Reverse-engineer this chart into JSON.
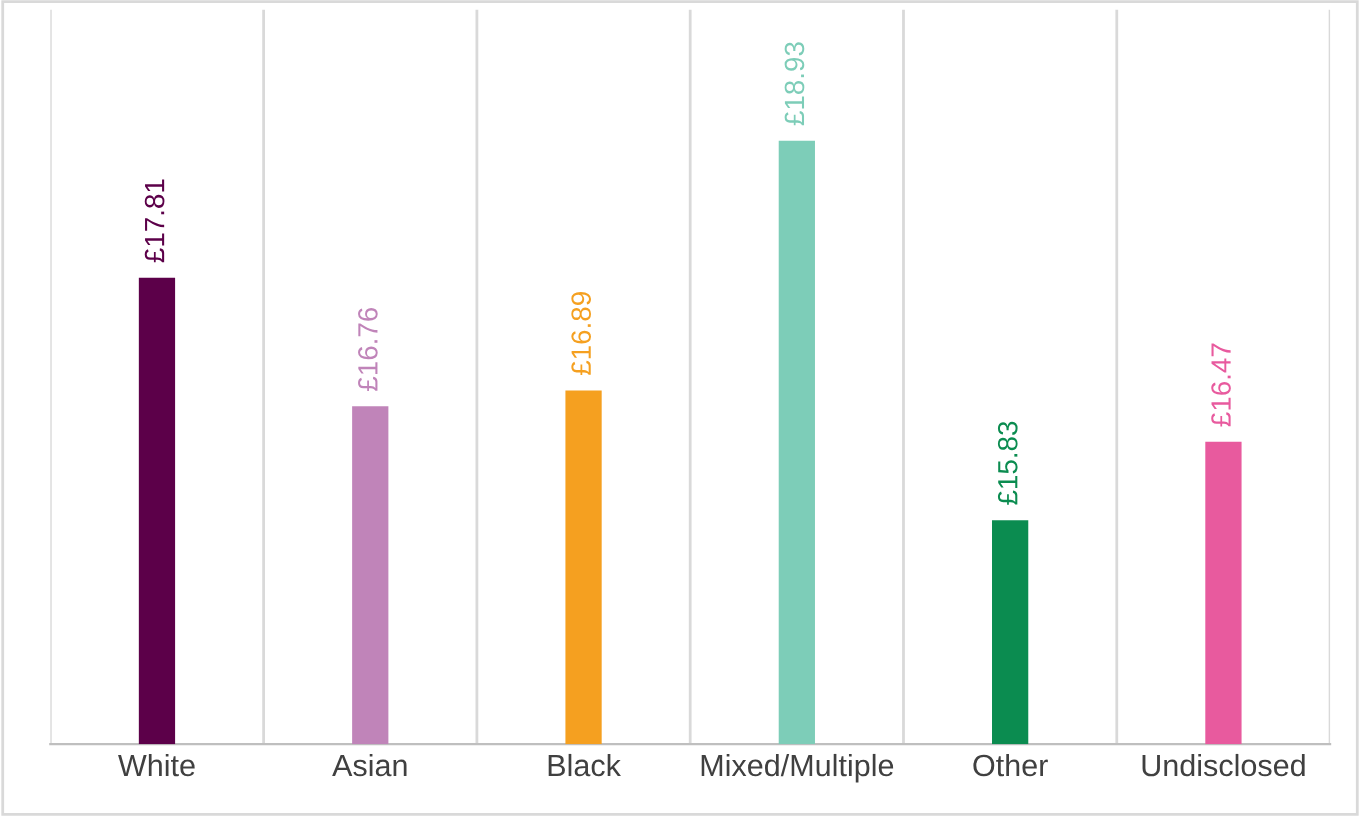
{
  "chart_data": {
    "type": "bar",
    "categories": [
      "White",
      "Asian",
      "Black",
      "Mixed/Multiple",
      "Other",
      "Undisclosed"
    ],
    "values": [
      17.81,
      16.76,
      16.89,
      18.93,
      15.83,
      16.47
    ],
    "colors": [
      "#5c0049",
      "#c084b9",
      "#f5a020",
      "#7dcdb8",
      "#0b8c50",
      "#e85a9e"
    ],
    "value_labels": [
      "£17.81",
      "£16.76",
      "£16.89",
      "£18.93",
      "£15.83",
      "£16.47"
    ],
    "ylim": [
      14,
      20
    ],
    "tick_labels": "x",
    "grid": "x"
  }
}
